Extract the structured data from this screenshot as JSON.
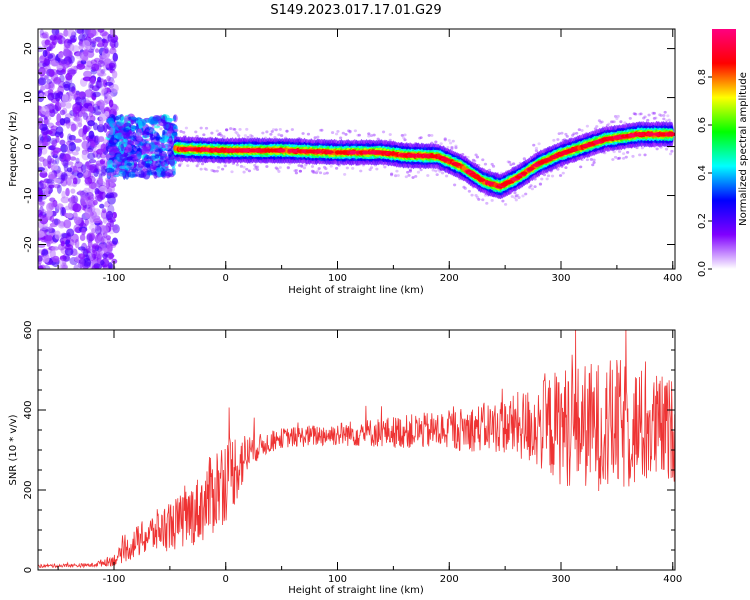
{
  "title": "S149.2023.017.17.01.G29",
  "chart_data": [
    {
      "type": "heatmap",
      "xlabel": "Height of straight line (km)",
      "ylabel": "Frequency (Hz)",
      "xlim": [
        -168,
        402
      ],
      "ylim": [
        -25,
        24
      ],
      "xticks": [
        -100,
        0,
        100,
        200,
        300,
        400
      ],
      "yticks": [
        -20,
        -10,
        0,
        10,
        20
      ],
      "colorbar": {
        "label": "Normalized spectral amplitude",
        "range": [
          0,
          1
        ],
        "ticks": [
          "0.0",
          "0.2",
          "0.4",
          "0.6",
          "0.8"
        ],
        "tick_values": [
          0,
          0.2,
          0.4,
          0.6,
          0.8
        ],
        "colors": [
          "#ffffff",
          "#8000ff",
          "#0000ff",
          "#00ffff",
          "#00ff00",
          "#ffff00",
          "#ff0000",
          "#ff0080"
        ]
      },
      "ridge": {
        "x": [
          -100,
          -60,
          -40,
          0,
          50,
          100,
          140,
          160,
          190,
          210,
          230,
          245,
          260,
          280,
          300,
          340,
          370,
          400
        ],
        "freq": [
          0,
          0,
          -0.5,
          -0.8,
          -0.8,
          -1.2,
          -1.2,
          -1.8,
          -2.0,
          -4.0,
          -7.0,
          -8.2,
          -6.5,
          -3.5,
          -1.5,
          1.5,
          2.5,
          2.5
        ]
      }
    },
    {
      "type": "line",
      "xlabel": "Height of straight line (km)",
      "ylabel": "SNR (10 * v/v)",
      "xlim": [
        -168,
        402
      ],
      "ylim": [
        0,
        600
      ],
      "xticks": [
        -100,
        0,
        100,
        200,
        300,
        400
      ],
      "yticks": [
        0,
        200,
        400,
        600
      ],
      "color": "#ee3333",
      "envelope": {
        "x": [
          -168,
          -120,
          -100,
          -80,
          -60,
          -40,
          -20,
          -10,
          0,
          10,
          20,
          30,
          50,
          100,
          150,
          200,
          250,
          280,
          300,
          350,
          400
        ],
        "mean": [
          10,
          12,
          25,
          70,
          100,
          120,
          160,
          200,
          230,
          260,
          290,
          310,
          330,
          340,
          345,
          350,
          360,
          360,
          360,
          360,
          350
        ],
        "spread": [
          4,
          5,
          15,
          40,
          55,
          70,
          90,
          110,
          110,
          90,
          50,
          30,
          25,
          30,
          40,
          50,
          70,
          110,
          150,
          170,
          130
        ]
      }
    }
  ]
}
